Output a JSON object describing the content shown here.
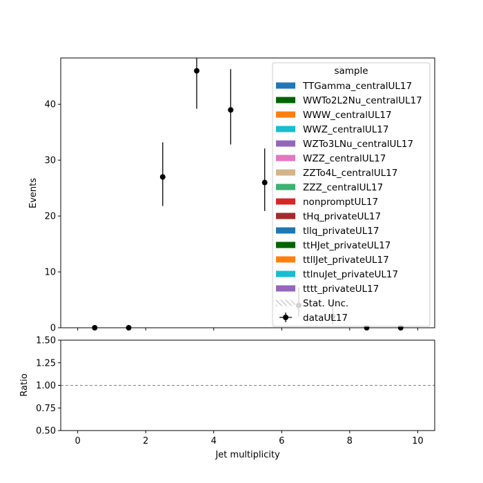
{
  "chart_data": [
    {
      "type": "scatter",
      "panel": "main",
      "ylabel": "Events",
      "xlim": [
        -0.5,
        10.5
      ],
      "ylim": [
        0,
        48.3
      ],
      "yticks": [
        0,
        10,
        20,
        30,
        40
      ],
      "grid": false,
      "legend": {
        "title": "sample",
        "placement": "top-right",
        "entries": [
          {
            "label": "TTGamma_centralUL17",
            "color": "#1f77b4",
            "kind": "patch"
          },
          {
            "label": "WWTo2L2Nu_centralUL17",
            "color": "#006400",
            "kind": "patch"
          },
          {
            "label": "WWW_centralUL17",
            "color": "#ff7f0e",
            "kind": "patch"
          },
          {
            "label": "WWZ_centralUL17",
            "color": "#17becf",
            "kind": "patch"
          },
          {
            "label": "WZTo3LNu_centralUL17",
            "color": "#9467bd",
            "kind": "patch"
          },
          {
            "label": "WZZ_centralUL17",
            "color": "#e377c2",
            "kind": "patch"
          },
          {
            "label": "ZZTo4L_centralUL17",
            "color": "#d2b48c",
            "kind": "patch"
          },
          {
            "label": "ZZZ_centralUL17",
            "color": "#3cb371",
            "kind": "patch"
          },
          {
            "label": "nonpromptUL17",
            "color": "#d62728",
            "kind": "patch"
          },
          {
            "label": "tHq_privateUL17",
            "color": "#a52a2a",
            "kind": "patch"
          },
          {
            "label": "tllq_privateUL17",
            "color": "#1f77b4",
            "kind": "patch"
          },
          {
            "label": "ttHJet_privateUL17",
            "color": "#006400",
            "kind": "patch"
          },
          {
            "label": "ttllJet_privateUL17",
            "color": "#ff7f0e",
            "kind": "patch"
          },
          {
            "label": "ttlnuJet_privateUL17",
            "color": "#17becf",
            "kind": "patch"
          },
          {
            "label": "tttt_privateUL17",
            "color": "#9467bd",
            "kind": "patch"
          },
          {
            "label": "Stat. Unc.",
            "color": "#a0a0a0",
            "kind": "hatch"
          },
          {
            "label": "dataUL17",
            "color": "#000000",
            "kind": "errorbar"
          }
        ]
      },
      "series": [
        {
          "name": "dataUL17",
          "x": [
            0.5,
            1.5,
            2.5,
            3.5,
            4.5,
            5.5,
            6.5,
            7.5,
            8.5,
            9.5
          ],
          "y": [
            0,
            0,
            27,
            46,
            39,
            26,
            4,
            2,
            0,
            0
          ],
          "yerr_low": [
            0,
            0,
            5.2,
            6.8,
            6.2,
            5.1,
            2,
            1.4,
            0,
            0
          ],
          "yerr_high": [
            0,
            0,
            6.2,
            7.8,
            7.3,
            6.1,
            3.2,
            2.6,
            0,
            0
          ]
        }
      ]
    },
    {
      "type": "line",
      "panel": "ratio",
      "xlabel": "Jet multiplicity",
      "ylabel": "Ratio",
      "xlim": [
        -0.5,
        10.5
      ],
      "ylim": [
        0.5,
        1.5
      ],
      "xticks": [
        0,
        2,
        4,
        6,
        8,
        10
      ],
      "yticks": [
        0.5,
        0.75,
        1.0,
        1.25,
        1.5
      ],
      "ytick_labels": [
        "0.50",
        "0.75",
        "1.00",
        "1.25",
        "1.50"
      ],
      "reference_line": {
        "y": 1.0,
        "style": "dashed",
        "color": "#808080"
      }
    }
  ]
}
